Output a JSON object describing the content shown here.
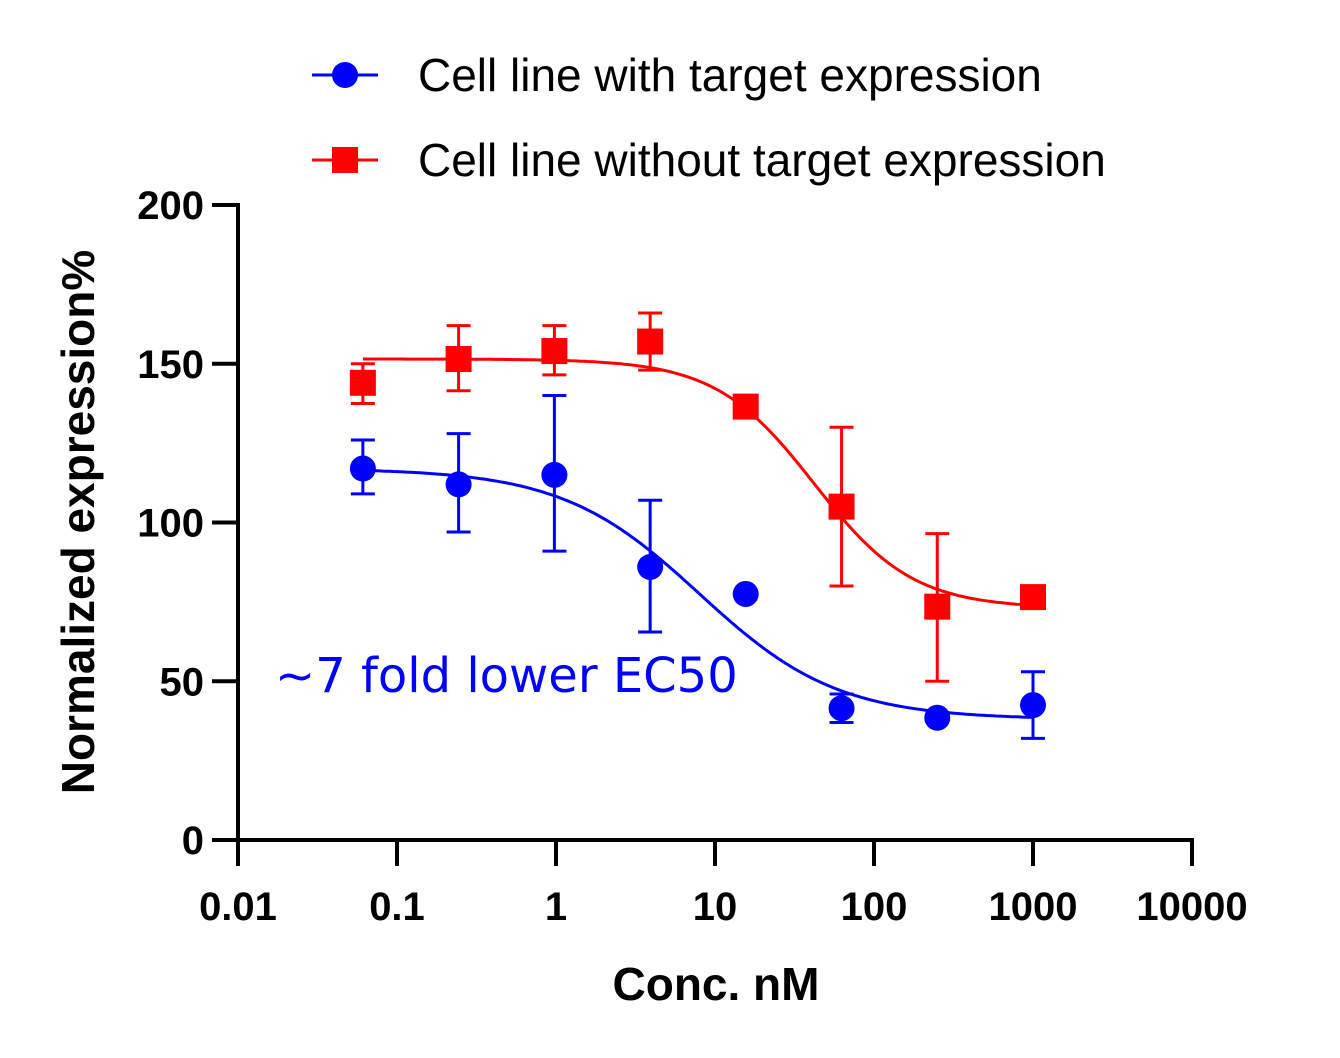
{
  "chart_data": {
    "type": "scatter",
    "xlabel": "Conc. nM",
    "ylabel": "Normalized expression%",
    "xscale": "log",
    "xlim": [
      0.01,
      10000
    ],
    "ylim": [
      0,
      200
    ],
    "xticks": [
      "0.01",
      "0.1",
      "1",
      "10",
      "100",
      "1000",
      "10000"
    ],
    "xtick_values": [
      0.01,
      0.1,
      1,
      10,
      100,
      1000,
      10000
    ],
    "yticks": [
      "0",
      "50",
      "100",
      "150",
      "200"
    ],
    "ytick_values": [
      0,
      50,
      100,
      150,
      200
    ],
    "grid": false,
    "legend_placement": "top",
    "annotation": {
      "text": "~7 fold lower EC50",
      "color": "#0000ff"
    },
    "series": [
      {
        "name": "Cell line with target expression",
        "color": "#0000ff",
        "marker": "circle",
        "x": [
          0.061,
          0.244,
          0.977,
          3.91,
          15.6,
          62.5,
          250,
          1000
        ],
        "y": [
          117,
          112,
          115,
          86,
          77.5,
          41.5,
          38.5,
          42.5
        ],
        "err_upper": [
          126,
          128,
          140,
          107,
          null,
          46,
          null,
          53
        ],
        "err_lower": [
          109,
          97,
          91,
          65.5,
          null,
          37,
          null,
          32
        ],
        "fit": {
          "top": 117,
          "bottom": 38,
          "ec50": 8,
          "hill": 1.0
        }
      },
      {
        "name": "Cell line without target expression",
        "color": "#ff0000",
        "marker": "square",
        "x": [
          0.061,
          0.244,
          0.977,
          3.91,
          15.6,
          62.5,
          250,
          1000
        ],
        "y": [
          144,
          151.5,
          154,
          157,
          136.5,
          105,
          73.5,
          76.5
        ],
        "err_upper": [
          150,
          162,
          162,
          166,
          null,
          130,
          96.5,
          null
        ],
        "err_lower": [
          137.5,
          141.5,
          146.5,
          148,
          null,
          80,
          50,
          null
        ],
        "fit": {
          "top": 151.5,
          "bottom": 73,
          "ec50": 42,
          "hill": 1.4
        }
      }
    ]
  }
}
